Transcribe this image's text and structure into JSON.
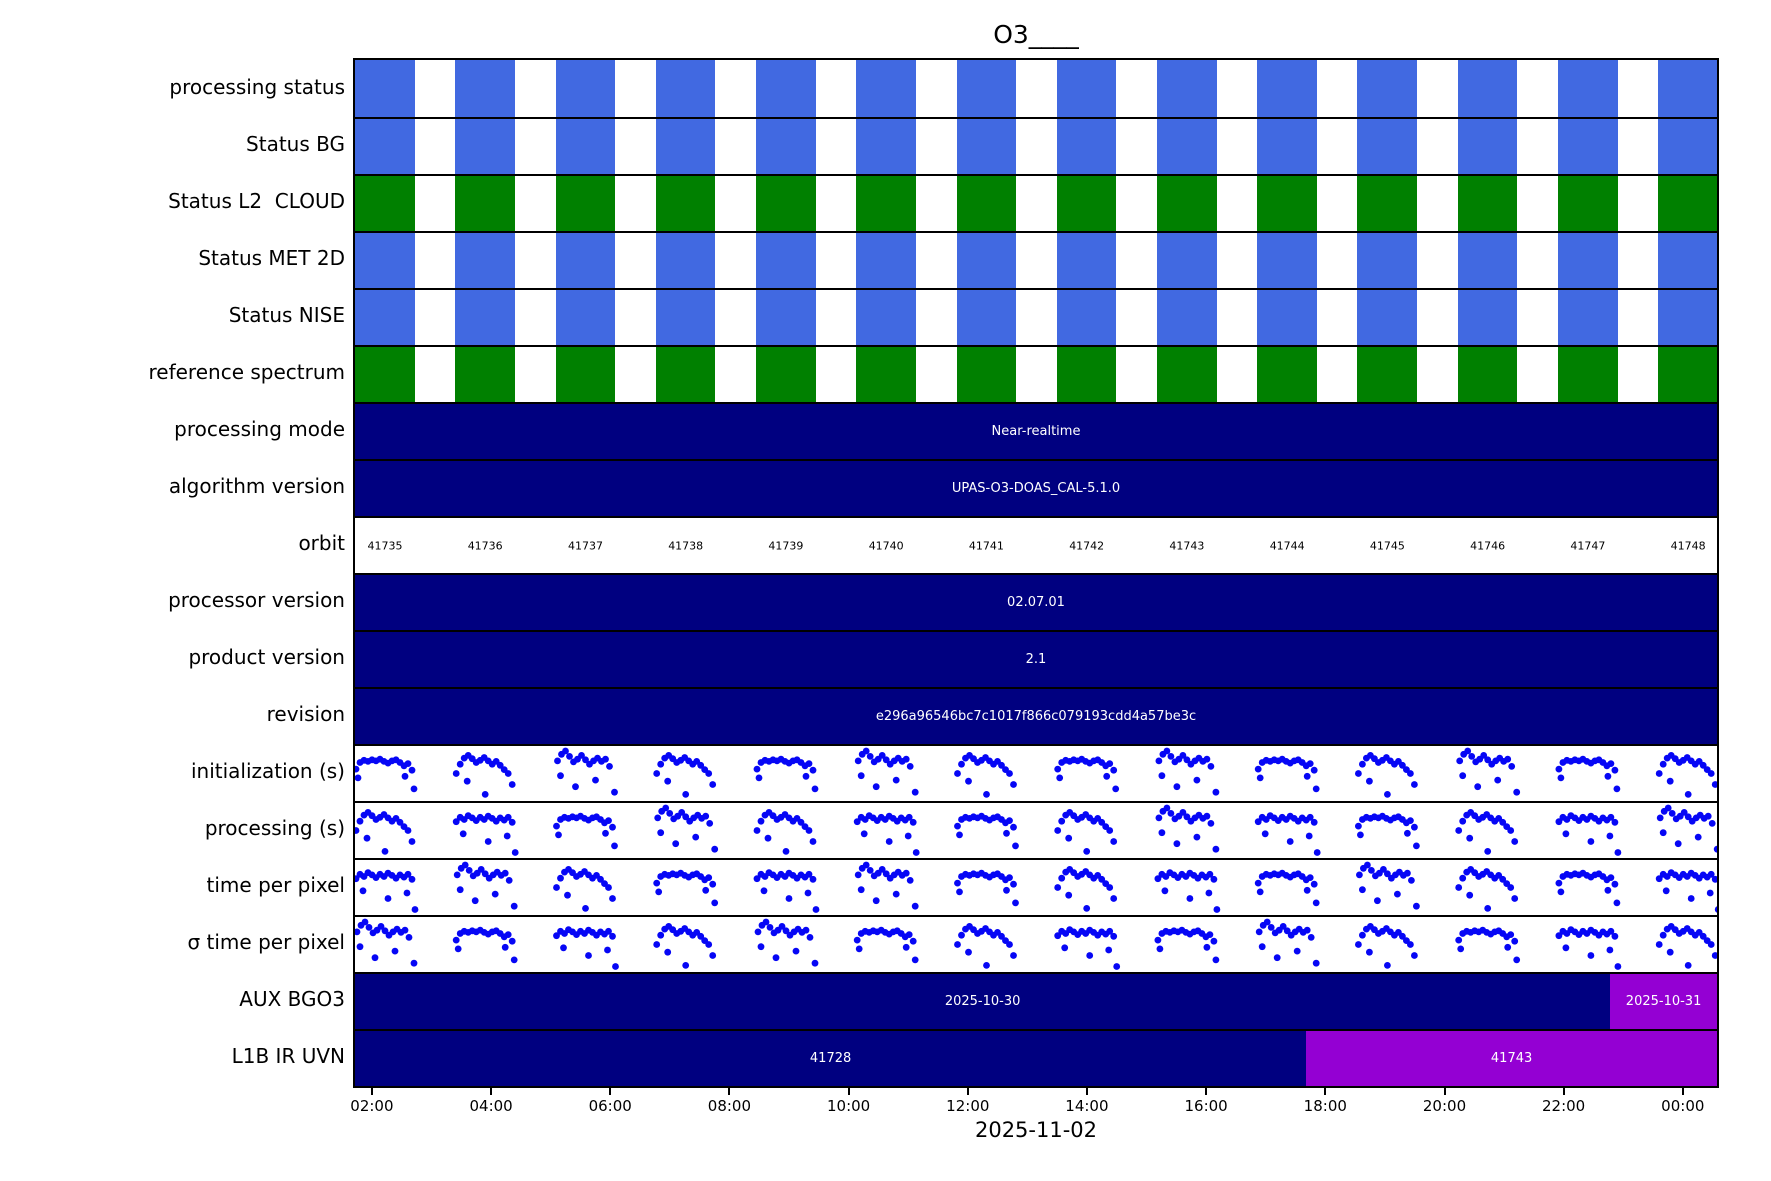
{
  "chart_data": {
    "type": "timeline",
    "title": "O3____",
    "xlabel": "2025-11-02",
    "x_ticks": {
      "labels": [
        "02:00",
        "04:00",
        "06:00",
        "08:00",
        "10:00",
        "12:00",
        "14:00",
        "16:00",
        "18:00",
        "20:00",
        "22:00",
        "00:00"
      ],
      "first_frac": 0.0124,
      "step_frac": 0.0875
    },
    "colors": {
      "status_blue": "#4169E1",
      "status_green": "#008000",
      "bar_navy": "#000080",
      "segment_violet": "#9400D3",
      "dot_blue": "#0606F5",
      "text_on_dark": "#ffffff",
      "line_black": "#000000"
    },
    "stripe_pattern": {
      "count": 14,
      "period_frac": 0.0736,
      "bar_width_frac": 0.0438
    },
    "orbits": {
      "labels": [
        "41735",
        "41736",
        "41737",
        "41738",
        "41739",
        "41740",
        "41741",
        "41742",
        "41743",
        "41744",
        "41745",
        "41746",
        "41747",
        "41748"
      ],
      "first_center_frac": 0.022,
      "step_frac": 0.0736
    },
    "scatter": {
      "dot_radius": 3.4,
      "cluster_step_frac": 0.0736,
      "templates": {
        "A": [
          [
            1,
            0.42
          ],
          [
            5,
            0.3
          ],
          [
            9,
            0.26
          ],
          [
            13,
            0.28
          ],
          [
            17,
            0.25
          ],
          [
            21,
            0.27
          ],
          [
            25,
            0.24
          ],
          [
            29,
            0.28
          ],
          [
            33,
            0.31
          ],
          [
            37,
            0.27
          ],
          [
            41,
            0.25
          ],
          [
            45,
            0.3
          ],
          [
            49,
            0.36
          ],
          [
            53,
            0.32
          ],
          [
            57,
            0.44
          ],
          [
            3,
            0.58
          ],
          [
            50,
            0.55
          ],
          [
            59,
            0.78
          ]
        ],
        "B": [
          [
            1,
            0.5
          ],
          [
            5,
            0.33
          ],
          [
            9,
            0.22
          ],
          [
            13,
            0.17
          ],
          [
            17,
            0.23
          ],
          [
            21,
            0.3
          ],
          [
            25,
            0.26
          ],
          [
            29,
            0.21
          ],
          [
            33,
            0.27
          ],
          [
            37,
            0.33
          ],
          [
            41,
            0.28
          ],
          [
            45,
            0.35
          ],
          [
            49,
            0.43
          ],
          [
            53,
            0.5
          ],
          [
            12,
            0.64
          ],
          [
            57,
            0.7
          ],
          [
            30,
            0.88
          ]
        ],
        "C": [
          [
            2,
            0.27
          ],
          [
            6,
            0.15
          ],
          [
            10,
            0.09
          ],
          [
            14,
            0.19
          ],
          [
            18,
            0.29
          ],
          [
            22,
            0.24
          ],
          [
            26,
            0.17
          ],
          [
            30,
            0.25
          ],
          [
            34,
            0.33
          ],
          [
            38,
            0.27
          ],
          [
            42,
            0.22
          ],
          [
            46,
            0.28
          ],
          [
            50,
            0.24
          ],
          [
            54,
            0.37
          ],
          [
            5,
            0.54
          ],
          [
            40,
            0.62
          ],
          [
            59,
            0.84
          ],
          [
            20,
            0.74
          ]
        ],
        "D": [
          [
            1,
            0.34
          ],
          [
            5,
            0.26
          ],
          [
            9,
            0.3
          ],
          [
            13,
            0.23
          ],
          [
            17,
            0.27
          ],
          [
            21,
            0.32
          ],
          [
            25,
            0.26
          ],
          [
            29,
            0.3
          ],
          [
            33,
            0.24
          ],
          [
            37,
            0.28
          ],
          [
            41,
            0.33
          ],
          [
            45,
            0.27
          ],
          [
            49,
            0.31
          ],
          [
            53,
            0.26
          ],
          [
            57,
            0.35
          ],
          [
            8,
            0.56
          ],
          [
            33,
            0.7
          ],
          [
            52,
            0.6
          ],
          [
            60,
            0.9
          ]
        ]
      }
    },
    "rows": [
      {
        "id": "processing-status",
        "label": "processing status",
        "type": "stripes",
        "color_key": "status_blue"
      },
      {
        "id": "status-bg",
        "label": "Status BG",
        "type": "stripes",
        "color_key": "status_blue"
      },
      {
        "id": "status-l2-cloud",
        "label": "Status L2  CLOUD",
        "type": "stripes",
        "color_key": "status_green"
      },
      {
        "id": "status-met-2d",
        "label": "Status MET 2D",
        "type": "stripes",
        "color_key": "status_blue"
      },
      {
        "id": "status-nise",
        "label": "Status NISE",
        "type": "stripes",
        "color_key": "status_blue"
      },
      {
        "id": "reference-spectrum",
        "label": "reference spectrum",
        "type": "stripes",
        "color_key": "status_green"
      },
      {
        "id": "processing-mode",
        "label": "processing mode",
        "type": "solid",
        "value": "Near-realtime"
      },
      {
        "id": "algorithm-version",
        "label": "algorithm version",
        "type": "solid",
        "value": "UPAS-O3-DOAS_CAL-5.1.0"
      },
      {
        "id": "orbit",
        "label": "orbit",
        "type": "orbit-numbers"
      },
      {
        "id": "processor-version",
        "label": "processor version",
        "type": "solid",
        "value": "02.07.01"
      },
      {
        "id": "product-version",
        "label": "product version",
        "type": "solid",
        "value": "2.1"
      },
      {
        "id": "revision",
        "label": "revision",
        "type": "solid",
        "value": "e296a96546bc7c1017f866c079193cdd4a57be3c"
      },
      {
        "id": "initialization",
        "label": "initialization (s)",
        "type": "scatter",
        "template_seq": "ABCBACBACABCAB"
      },
      {
        "id": "processing",
        "label": "processing (s)",
        "type": "scatter",
        "template_seq": "BDACBDABCDABDC"
      },
      {
        "id": "time-per-pixel",
        "label": "time per pixel",
        "type": "scatter",
        "template_seq": "DCBADCABDACBAD"
      },
      {
        "id": "sigma-time-per-pixel",
        "label": "σ time per pixel",
        "type": "scatter",
        "template_seq": "CADBCABDACBADB"
      },
      {
        "id": "aux-bgo3",
        "label": "AUX BGO3",
        "type": "segments",
        "segments": [
          {
            "label": "2025-10-30",
            "start_frac": 0,
            "end_frac": 0.9216,
            "color_key": "bar_navy"
          },
          {
            "label": "2025-10-31",
            "start_frac": 0.9216,
            "end_frac": 1,
            "color_key": "segment_violet"
          }
        ]
      },
      {
        "id": "l1b-ir-uvn",
        "label": "L1B IR UVN",
        "type": "segments",
        "segments": [
          {
            "label": "41728",
            "start_frac": 0,
            "end_frac": 0.6984,
            "color_key": "bar_navy"
          },
          {
            "label": "41743",
            "start_frac": 0.6984,
            "end_frac": 1,
            "color_key": "segment_violet"
          }
        ]
      }
    ]
  }
}
